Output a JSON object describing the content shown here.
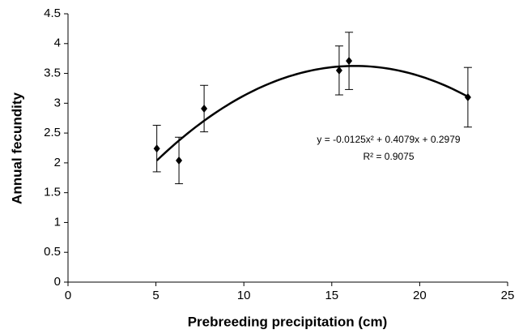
{
  "chart_data": {
    "type": "scatter",
    "x_label": "Prebreeding precipitation (cm)",
    "y_label": "Annual fecundity",
    "series": [
      {
        "x": [
          5.05,
          6.31,
          7.74,
          15.42,
          15.98,
          22.74
        ],
        "values": [
          2.24,
          2.04,
          2.91,
          3.55,
          3.71,
          3.1
        ],
        "errors": [
          0.39,
          0.39,
          0.39,
          0.41,
          0.48,
          0.5
        ],
        "color": "#000000"
      }
    ],
    "trendline": {
      "coefficients": [
        -0.0125,
        0.4079,
        0.2979
      ],
      "equation": "y = -0.0125x² + 0.4079x + 0.2979",
      "r2": "R² = 0.9075"
    },
    "xlim": [
      0,
      25
    ],
    "xticks": [
      0,
      5,
      10,
      15,
      20,
      25
    ],
    "ylim": [
      0,
      4.5
    ],
    "yticks": [
      0,
      0.5,
      1,
      1.5,
      2,
      2.5,
      3,
      3.5,
      4,
      4.5
    ]
  }
}
